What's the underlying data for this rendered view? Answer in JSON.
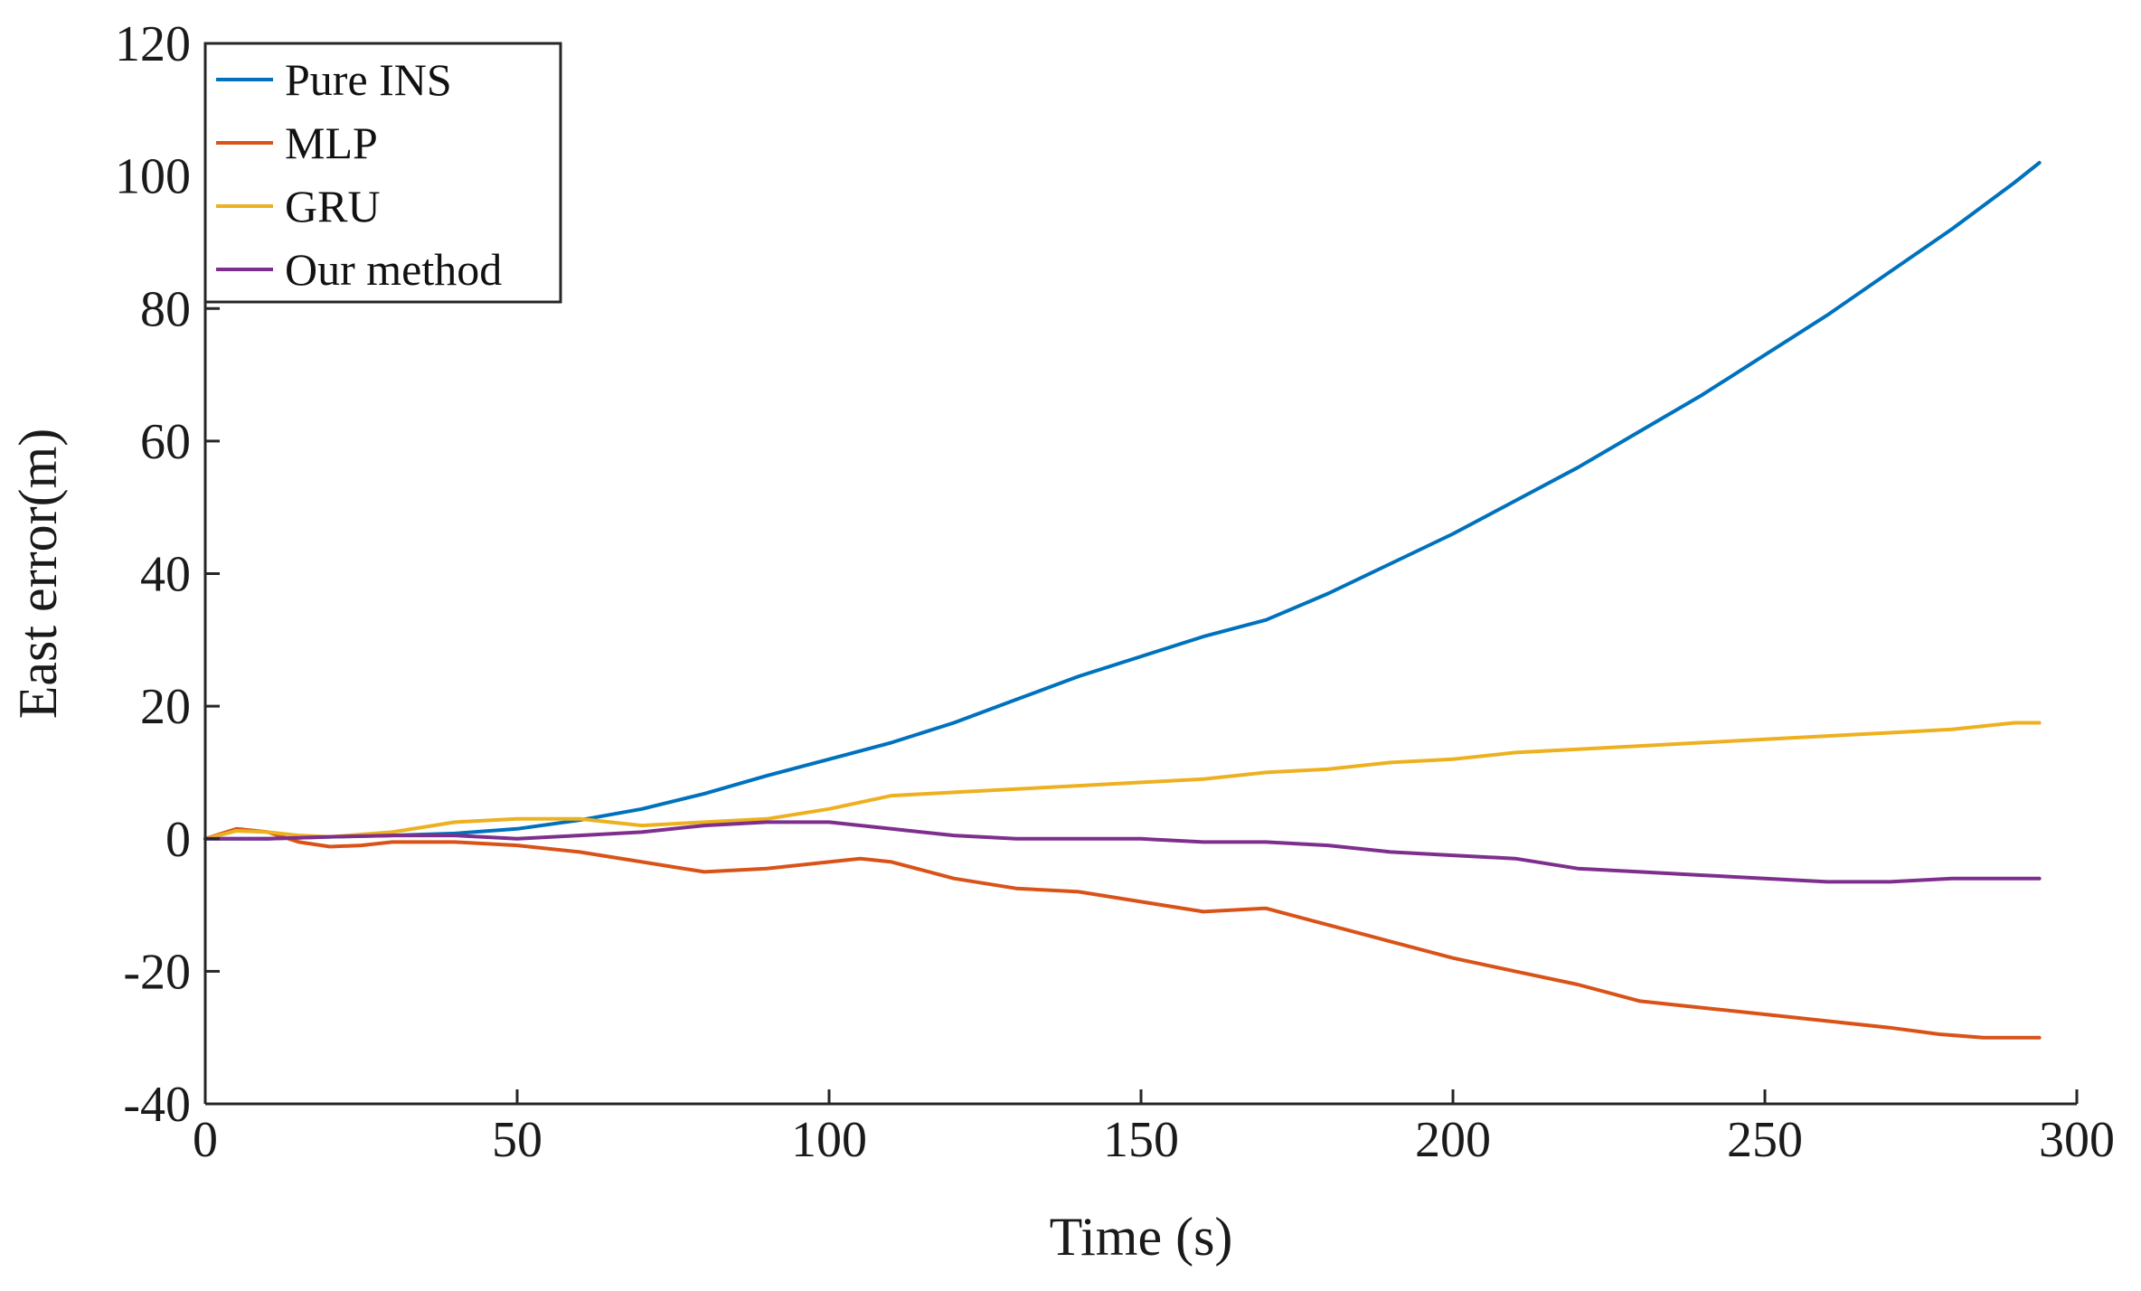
{
  "chart_data": {
    "type": "line",
    "title": "",
    "xlabel": "Time (s)",
    "ylabel": "East error(m)",
    "xlim": [
      0,
      300
    ],
    "ylim": [
      -40,
      120
    ],
    "xticks": [
      0,
      50,
      100,
      150,
      200,
      250,
      300
    ],
    "yticks": [
      -40,
      -20,
      0,
      20,
      40,
      60,
      80,
      100,
      120
    ],
    "grid": false,
    "legend_position": "top-left",
    "series": [
      {
        "name": "Pure INS",
        "color": "#0072BD",
        "x": [
          0,
          10,
          20,
          30,
          40,
          50,
          60,
          70,
          80,
          90,
          100,
          110,
          120,
          130,
          140,
          150,
          160,
          170,
          175,
          180,
          190,
          200,
          210,
          220,
          230,
          240,
          250,
          260,
          270,
          280,
          290,
          294
        ],
        "y": [
          0,
          0,
          0.3,
          0.5,
          0.8,
          1.5,
          2.8,
          4.5,
          6.8,
          9.5,
          12,
          14.5,
          17.5,
          21,
          24.5,
          27.5,
          30.5,
          33,
          35,
          37,
          41.5,
          46,
          51,
          56,
          61.5,
          67,
          73,
          79,
          85.5,
          92,
          99,
          102
        ]
      },
      {
        "name": "MLP",
        "color": "#D95319",
        "x": [
          0,
          5,
          10,
          15,
          20,
          25,
          30,
          40,
          50,
          60,
          70,
          80,
          90,
          100,
          105,
          110,
          120,
          130,
          140,
          150,
          160,
          170,
          180,
          190,
          200,
          210,
          220,
          230,
          240,
          250,
          260,
          270,
          278,
          285,
          294
        ],
        "y": [
          0,
          1.5,
          1,
          -0.5,
          -1.2,
          -1,
          -0.5,
          -0.5,
          -1,
          -2,
          -3.5,
          -5,
          -4.5,
          -3.5,
          -3,
          -3.5,
          -6,
          -7.5,
          -8,
          -9.5,
          -11,
          -10.5,
          -13,
          -15.5,
          -18,
          -20,
          -22,
          -24.5,
          -25.5,
          -26.5,
          -27.5,
          -28.5,
          -29.5,
          -30,
          -30
        ]
      },
      {
        "name": "GRU",
        "color": "#EDB120",
        "x": [
          0,
          5,
          10,
          15,
          20,
          30,
          40,
          50,
          60,
          70,
          80,
          90,
          100,
          110,
          120,
          130,
          140,
          150,
          160,
          170,
          180,
          190,
          200,
          210,
          220,
          230,
          240,
          250,
          260,
          270,
          280,
          290,
          294
        ],
        "y": [
          0,
          1.2,
          1,
          0.5,
          0.3,
          1,
          2.5,
          3,
          3,
          2,
          2.5,
          3,
          4.5,
          6.5,
          7,
          7.5,
          8,
          8.5,
          9,
          10,
          10.5,
          11.5,
          12,
          13,
          13.5,
          14,
          14.5,
          15,
          15.5,
          16,
          16.5,
          17.5,
          17.5
        ]
      },
      {
        "name": "Our method",
        "color": "#7E2F8E",
        "x": [
          0,
          10,
          20,
          30,
          40,
          50,
          60,
          70,
          80,
          90,
          100,
          110,
          120,
          130,
          140,
          150,
          160,
          170,
          180,
          190,
          200,
          210,
          220,
          230,
          240,
          250,
          260,
          270,
          280,
          290,
          294
        ],
        "y": [
          0,
          0,
          0.3,
          0.5,
          0.5,
          0,
          0.5,
          1,
          2,
          2.5,
          2.5,
          1.5,
          0.5,
          0,
          0,
          0,
          -0.5,
          -0.5,
          -1,
          -2,
          -2.5,
          -3,
          -4.5,
          -5,
          -5.5,
          -6,
          -6.5,
          -6.5,
          -6,
          -6,
          -6
        ]
      }
    ]
  }
}
